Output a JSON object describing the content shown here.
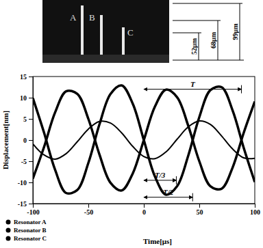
{
  "chart_data": {
    "type": "line",
    "x_label": "Time[μs]",
    "y_label": "Displacement[nm]",
    "x": [
      -100,
      -90,
      -80,
      -70,
      -60,
      -50,
      -40,
      -30,
      -20,
      -10,
      0,
      10,
      20,
      30,
      40,
      50,
      60,
      70,
      80,
      90,
      100
    ],
    "series": [
      {
        "name": "Resonator A",
        "color": "#000000",
        "line_style": "solid",
        "marker": "circle",
        "values": [
          -9.1,
          -1.7,
          6.5,
          11.5,
          10.9,
          5.0,
          -3.4,
          -10.1,
          -11.9,
          -7.9,
          0,
          7.9,
          11.9,
          10.1,
          3.4,
          -5.0,
          -10.9,
          -11.5,
          -6.5,
          1.7,
          9.1
        ]
      },
      {
        "name": "Resonator B",
        "color": "#000000",
        "line_style": "solid",
        "marker": "circle",
        "values": [
          -0.9,
          -3.5,
          -4.5,
          -3.2,
          -0.4,
          2.6,
          4.4,
          4.0,
          1.7,
          -1.5,
          -3.9,
          -4.4,
          -2.8,
          0.2,
          3.1,
          4.5,
          3.7,
          1.0,
          -2.1,
          -4.2,
          -4.3
        ]
      },
      {
        "name": "Resonator C",
        "color": "#000000",
        "line_style": "solid",
        "marker": "circle",
        "values": [
          9.9,
          1.8,
          -7.0,
          -12.5,
          -11.8,
          -5.4,
          3.7,
          10.9,
          12.9,
          8.6,
          0,
          -8.6,
          -12.9,
          -10.9,
          -3.7,
          5.4,
          11.8,
          12.5,
          7.0,
          -1.8,
          -9.9
        ]
      }
    ],
    "xlim": [
      -100,
      100
    ],
    "xticks": [
      -100,
      -50,
      0,
      50,
      100
    ],
    "ylim": [
      -15,
      15
    ],
    "yticks": [
      -15,
      -10,
      -5,
      0,
      5,
      10,
      15
    ],
    "grid": false,
    "legend": "lower left",
    "annotations": [
      {
        "text": "T",
        "x": [
          0,
          88
        ],
        "y": 12
      },
      {
        "text": "T/3",
        "x": [
          0,
          29.3
        ],
        "y": -9.5
      },
      {
        "text": "T/2",
        "x": [
          0,
          44
        ],
        "y": -13.5
      }
    ]
  },
  "figure": {
    "labels": [
      "A",
      "B",
      "C"
    ],
    "dimensions": [
      "52μm",
      "68μm",
      "99μm"
    ]
  }
}
